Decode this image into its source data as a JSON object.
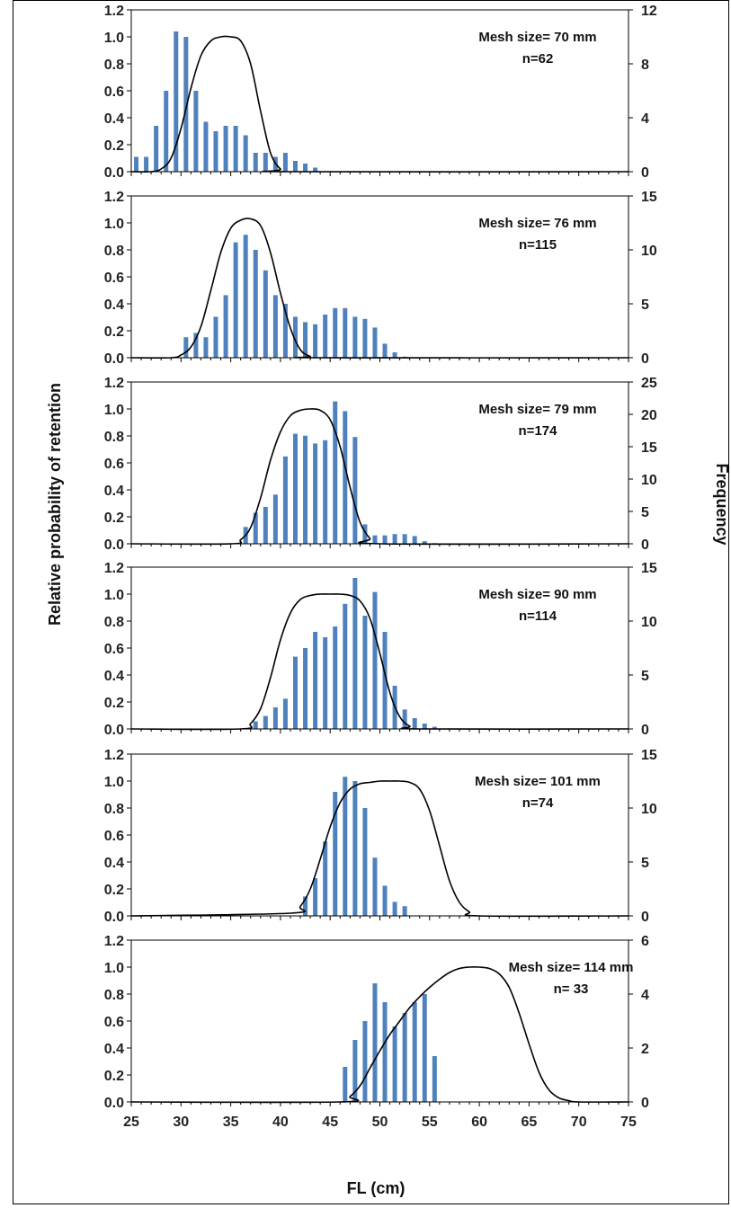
{
  "chart_data": {
    "type": "bar",
    "x_label": "FL (cm)",
    "y_left_label": "Relative probability of retention",
    "y_right_label": "Frequency",
    "x_ticks": [
      25,
      30,
      35,
      40,
      45,
      50,
      55,
      60,
      65,
      70,
      75
    ],
    "x_range": [
      25,
      75
    ],
    "left_ticks": [
      "0.0",
      "0.2",
      "0.4",
      "0.6",
      "0.8",
      "1.0",
      "1.2"
    ],
    "left_range": [
      0,
      1.2
    ],
    "bar_color": "#4f81bd",
    "curve_color": "#000000",
    "panels": [
      {
        "mesh": "Mesh size= 70 mm",
        "n": "n=62",
        "right_ticks": [
          "0",
          "4",
          "8",
          "12"
        ],
        "right_max": 12,
        "bars": {
          "x": [
            25.5,
            26.5,
            27.5,
            28.5,
            29.5,
            30.5,
            31.5,
            32.5,
            33.5,
            34.5,
            35.5,
            36.5,
            37.5,
            38.5,
            39.5,
            40.5,
            41.5,
            42.5,
            43.5
          ],
          "freq": [
            1.1,
            1.1,
            3.4,
            6.0,
            10.4,
            10.0,
            6.0,
            3.7,
            3.0,
            3.4,
            3.4,
            2.7,
            1.4,
            1.4,
            1.1,
            1.4,
            0.8,
            0.6,
            0.3
          ]
        },
        "curve": {
          "x": [
            25,
            27,
            28,
            29,
            30,
            31,
            32,
            33,
            34,
            35,
            36,
            37,
            38,
            39,
            40,
            41,
            75
          ],
          "p": [
            0.0,
            0.0,
            0.02,
            0.1,
            0.32,
            0.62,
            0.86,
            0.97,
            1.0,
            1.0,
            0.97,
            0.8,
            0.45,
            0.14,
            0.02,
            0.0,
            0.0
          ]
        }
      },
      {
        "mesh": "Mesh size= 76 mm",
        "n": "n=115",
        "right_ticks": [
          "0",
          "5",
          "10",
          "15"
        ],
        "right_max": 15,
        "bars": {
          "x": [
            30.5,
            31.5,
            32.5,
            33.5,
            34.5,
            35.5,
            36.5,
            37.5,
            38.5,
            39.5,
            40.5,
            41.5,
            42.5,
            43.5,
            44.5,
            45.5,
            46.5,
            47.5,
            48.5,
            49.5,
            50.5,
            51.5,
            52.5
          ],
          "freq": [
            1.9,
            2.3,
            1.9,
            3.8,
            5.8,
            10.7,
            11.4,
            10.0,
            8.1,
            5.8,
            5.0,
            3.8,
            3.3,
            3.1,
            4.0,
            4.6,
            4.6,
            3.8,
            3.6,
            2.8,
            1.3,
            0.5,
            0.1
          ]
        },
        "curve": {
          "x": [
            25,
            29,
            30,
            31,
            32,
            33,
            34,
            35,
            36,
            37,
            38,
            39,
            40,
            41,
            42,
            43,
            44,
            75
          ],
          "p": [
            0.0,
            0.0,
            0.02,
            0.08,
            0.23,
            0.5,
            0.78,
            0.96,
            1.02,
            1.03,
            0.98,
            0.78,
            0.48,
            0.22,
            0.06,
            0.01,
            0.0,
            0.0
          ]
        }
      },
      {
        "mesh": "Mesh size= 79 mm",
        "n": "n=174",
        "right_ticks": [
          "0",
          "5",
          "10",
          "15",
          "20",
          "25"
        ],
        "right_max": 25,
        "bars": {
          "x": [
            36.5,
            37.5,
            38.5,
            39.5,
            40.5,
            41.5,
            42.5,
            43.5,
            44.5,
            45.5,
            46.5,
            47.5,
            48.5,
            49.5,
            50.5,
            51.5,
            52.5,
            53.5,
            54.5,
            55.5
          ],
          "freq": [
            2.6,
            4.8,
            5.7,
            7.6,
            13.5,
            17.0,
            16.7,
            15.5,
            16.0,
            22.0,
            20.5,
            16.5,
            3.0,
            1.3,
            1.3,
            1.5,
            1.5,
            1.2,
            0.4,
            0.1
          ]
        },
        "curve": {
          "x": [
            25,
            35,
            36,
            37,
            38,
            39,
            40,
            41,
            42,
            43,
            44,
            45,
            46,
            47,
            48,
            49,
            50,
            75
          ],
          "p": [
            0.0,
            0.0,
            0.03,
            0.12,
            0.34,
            0.62,
            0.83,
            0.95,
            0.99,
            1.0,
            0.99,
            0.92,
            0.72,
            0.42,
            0.16,
            0.04,
            0.0,
            0.0
          ]
        }
      },
      {
        "mesh": "Mesh size= 90 mm",
        "n": "n=114",
        "right_ticks": [
          "0",
          "5",
          "10",
          "15"
        ],
        "right_max": 15,
        "bars": {
          "x": [
            37.5,
            38.5,
            39.5,
            40.5,
            41.5,
            42.5,
            43.5,
            44.5,
            45.5,
            46.5,
            47.5,
            48.5,
            49.5,
            50.5,
            51.5,
            52.5,
            53.5,
            54.5,
            55.5
          ],
          "freq": [
            0.7,
            1.2,
            2.0,
            2.8,
            6.7,
            7.5,
            9.0,
            8.5,
            9.5,
            11.6,
            14.0,
            10.5,
            12.7,
            9.0,
            4.0,
            1.8,
            1.0,
            0.5,
            0.2
          ]
        },
        "curve": {
          "x": [
            25,
            36,
            37,
            38,
            39,
            40,
            41,
            42,
            43,
            44,
            45,
            46,
            47,
            48,
            49,
            50,
            51,
            52,
            53,
            54,
            75
          ],
          "p": [
            0.0,
            0.0,
            0.04,
            0.15,
            0.38,
            0.66,
            0.86,
            0.96,
            0.99,
            1.0,
            1.0,
            1.0,
            0.99,
            0.95,
            0.82,
            0.56,
            0.27,
            0.09,
            0.02,
            0.0,
            0.0
          ]
        }
      },
      {
        "mesh": "Mesh size= 101 mm",
        "n": "n=74",
        "right_ticks": [
          "0",
          "5",
          "10",
          "15"
        ],
        "right_max": 15,
        "bars": {
          "x": [
            42.5,
            43.5,
            44.5,
            45.5,
            46.5,
            47.5,
            48.5,
            49.5,
            50.5,
            51.5,
            52.5
          ],
          "freq": [
            1.8,
            3.5,
            6.9,
            11.5,
            12.9,
            12.5,
            10.0,
            5.4,
            2.8,
            1.3,
            0.9
          ]
        },
        "curve": {
          "x": [
            25,
            41,
            42,
            43,
            44,
            45,
            46,
            47,
            48,
            49,
            50,
            51,
            52,
            53,
            54,
            55,
            56,
            57,
            58,
            59,
            60,
            75
          ],
          "p": [
            0.0,
            0.02,
            0.07,
            0.2,
            0.42,
            0.66,
            0.84,
            0.94,
            0.98,
            0.99,
            1.0,
            1.0,
            1.0,
            0.99,
            0.94,
            0.78,
            0.52,
            0.26,
            0.1,
            0.03,
            0.0,
            0.0
          ]
        }
      },
      {
        "mesh": "Mesh size= 114 mm",
        "n": "n= 33",
        "right_ticks": [
          "0",
          "2",
          "4",
          "6"
        ],
        "right_max": 6,
        "bars": {
          "x": [
            46.5,
            47.5,
            48.5,
            49.5,
            50.5,
            51.5,
            52.5,
            53.5,
            54.5,
            55.5
          ],
          "freq": [
            1.3,
            2.3,
            3.0,
            4.4,
            3.7,
            2.8,
            3.3,
            3.7,
            4.0,
            1.7
          ]
        },
        "curve": {
          "x": [
            25,
            46,
            47,
            48,
            49,
            50,
            51,
            52,
            53,
            54,
            55,
            56,
            57,
            58,
            59,
            60,
            61,
            62,
            63,
            64,
            65,
            66,
            67,
            68,
            69,
            70,
            75
          ],
          "p": [
            0.0,
            0.0,
            0.04,
            0.12,
            0.25,
            0.38,
            0.5,
            0.6,
            0.7,
            0.78,
            0.85,
            0.91,
            0.96,
            0.99,
            1.0,
            1.0,
            0.99,
            0.95,
            0.85,
            0.66,
            0.43,
            0.22,
            0.09,
            0.03,
            0.01,
            0.0,
            0.0
          ]
        }
      }
    ]
  }
}
